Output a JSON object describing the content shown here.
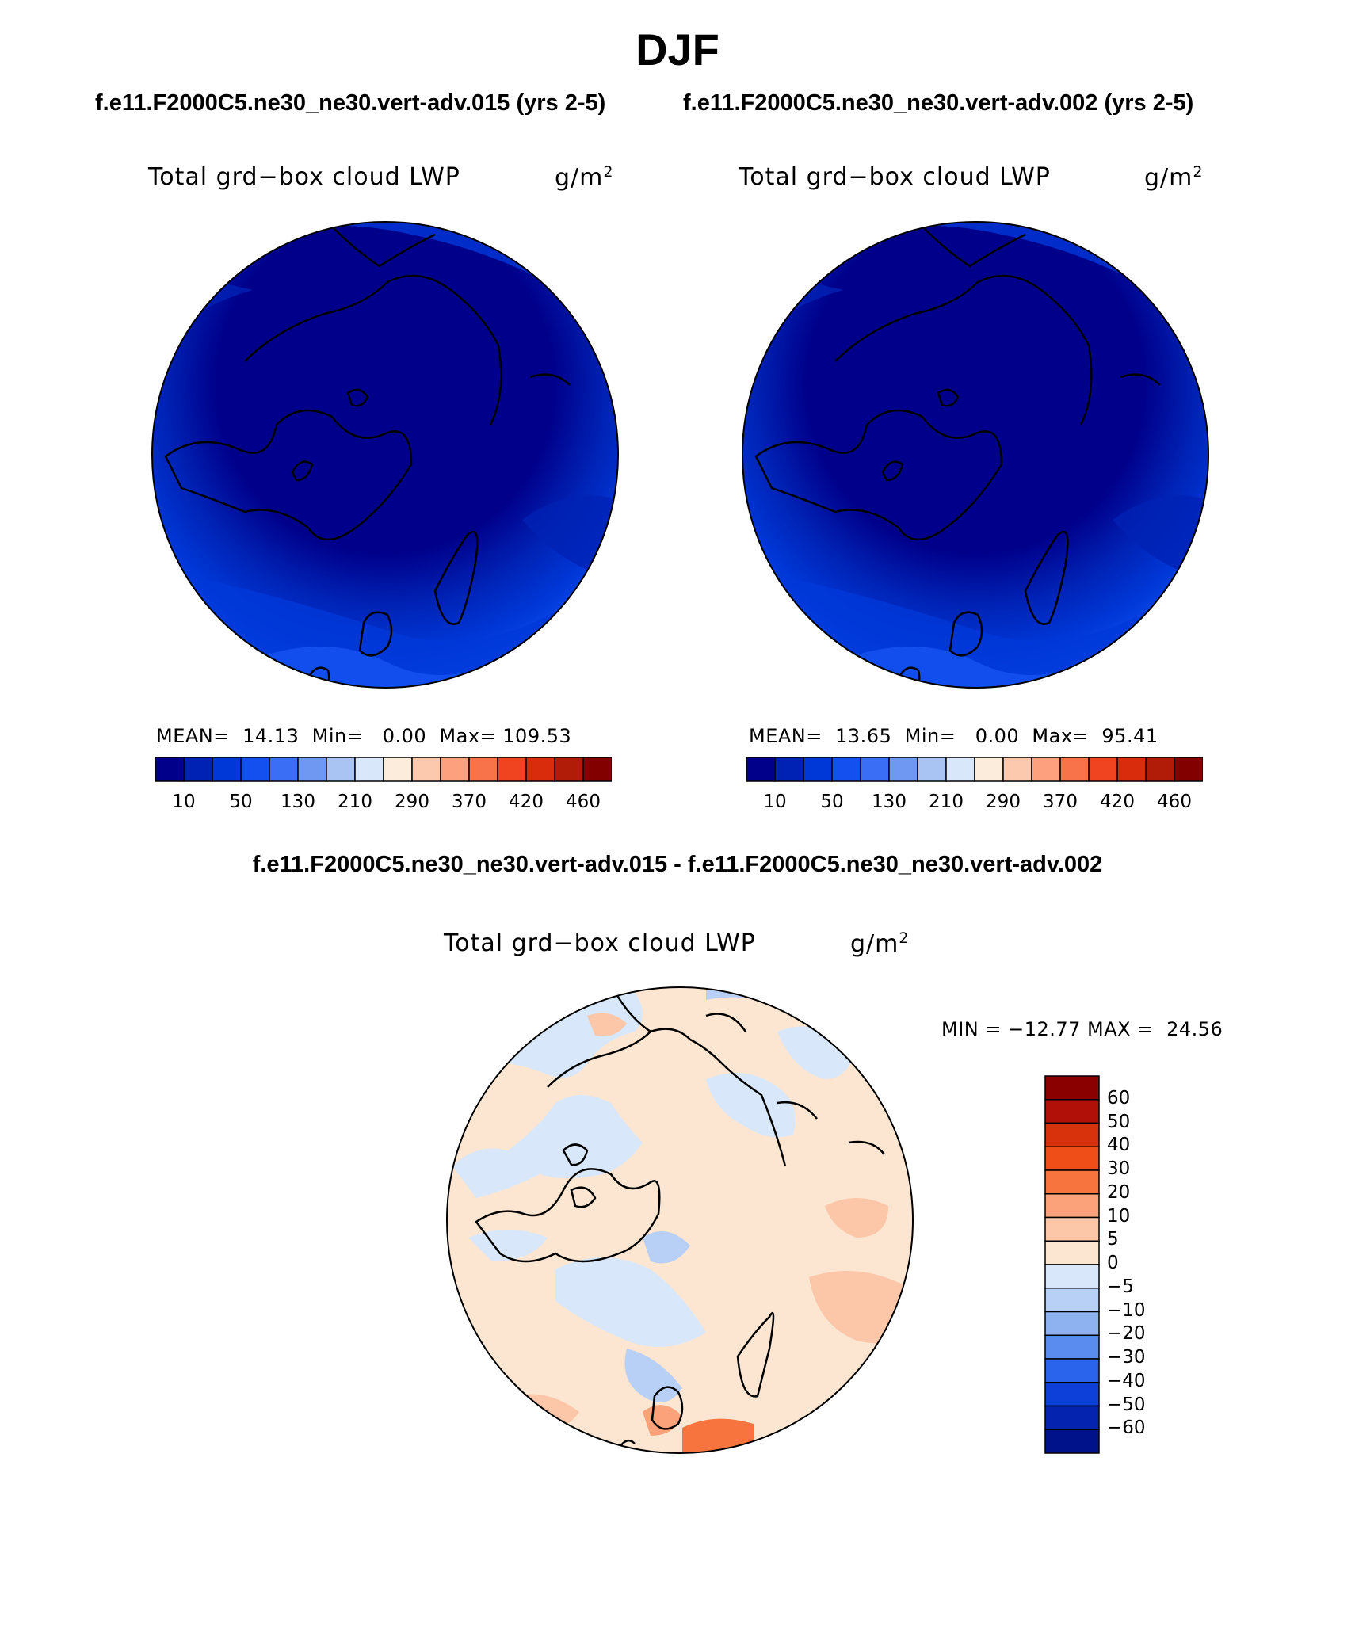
{
  "title": "DJF",
  "panels": [
    {
      "case": "f.e11.F2000C5.ne30_ne30.vert-adv.015 (yrs 2-5)",
      "variable": "Total grd−box cloud LWP",
      "units_base": "g/m",
      "units_exp": "2",
      "mean_label": "MEAN=",
      "mean": "14.13",
      "min_label": "Min=",
      "min": "0.00",
      "max_label": "Max=",
      "max": "109.53"
    },
    {
      "case": "f.e11.F2000C5.ne30_ne30.vert-adv.002 (yrs 2-5)",
      "variable": "Total grd−box cloud LWP",
      "units_base": "g/m",
      "units_exp": "2",
      "mean_label": "MEAN=",
      "mean": "13.65",
      "min_label": "Min=",
      "min": "0.00",
      "max_label": "Max=",
      "max": "95.41"
    }
  ],
  "abs_colorbar": {
    "colors": [
      "#00008a",
      "#0022b4",
      "#0038d8",
      "#1450f0",
      "#3a6ef4",
      "#6e98f2",
      "#a9c4f2",
      "#d8e8fa",
      "#fcecdc",
      "#fcc8ae",
      "#fca07e",
      "#f8724a",
      "#f04420",
      "#d82c0c",
      "#b01c08",
      "#820000"
    ],
    "labels": [
      "10",
      "50",
      "130",
      "210",
      "290",
      "370",
      "420",
      "460"
    ]
  },
  "diff": {
    "title": "f.e11.F2000C5.ne30_ne30.vert-adv.015 - f.e11.F2000C5.ne30_ne30.vert-adv.002",
    "variable": "Total grd−box cloud LWP",
    "units_base": "g/m",
    "units_exp": "2",
    "minmax": "MIN = −12.77 MAX =  24.56",
    "colorbar": {
      "colors_top_to_bottom": [
        "#8a0000",
        "#b01008",
        "#d8320c",
        "#f04e18",
        "#f8743e",
        "#fca27a",
        "#fcc6a8",
        "#fce6d2",
        "#d8e8fa",
        "#b8d0f6",
        "#8eb2f0",
        "#5a8cf0",
        "#2a64ec",
        "#0c40d8",
        "#0424b0",
        "#00128a"
      ],
      "labels": [
        "60",
        "50",
        "40",
        "30",
        "20",
        "10",
        "5",
        "0",
        "−5",
        "−10",
        "−20",
        "−30",
        "−40",
        "−50",
        "−60"
      ]
    }
  }
}
